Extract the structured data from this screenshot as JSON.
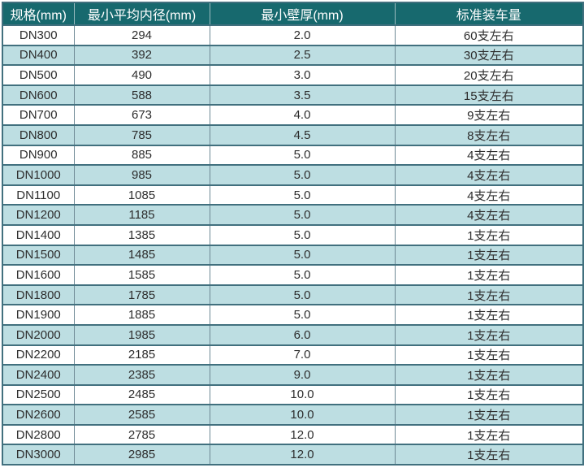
{
  "colors": {
    "header_bg": "#17696e",
    "header_text": "#ffffff",
    "row_bg": "#ffffff",
    "row_alt_bg": "#bddee2",
    "grid_horizontal": "#41707e",
    "grid_vertical": "#6d8894",
    "data_text": "#2d2d2d"
  },
  "table": {
    "columns": [
      {
        "label": "规格(mm)"
      },
      {
        "label": "最小平均内径(mm)"
      },
      {
        "label": "最小壁厚(mm)"
      },
      {
        "label": "标准装车量"
      }
    ],
    "rows": [
      {
        "spec": "DN300",
        "inner_diameter": "294",
        "wall_thickness": "2.0",
        "load_qty": "60支左右"
      },
      {
        "spec": "DN400",
        "inner_diameter": "392",
        "wall_thickness": "2.5",
        "load_qty": "30支左右"
      },
      {
        "spec": "DN500",
        "inner_diameter": "490",
        "wall_thickness": "3.0",
        "load_qty": "20支左右"
      },
      {
        "spec": "DN600",
        "inner_diameter": "588",
        "wall_thickness": "3.5",
        "load_qty": "15支左右"
      },
      {
        "spec": "DN700",
        "inner_diameter": "673",
        "wall_thickness": "4.0",
        "load_qty": "9支左右"
      },
      {
        "spec": "DN800",
        "inner_diameter": "785",
        "wall_thickness": "4.5",
        "load_qty": "8支左右"
      },
      {
        "spec": "DN900",
        "inner_diameter": "885",
        "wall_thickness": "5.0",
        "load_qty": "4支左右"
      },
      {
        "spec": "DN1000",
        "inner_diameter": "985",
        "wall_thickness": "5.0",
        "load_qty": "4支左右"
      },
      {
        "spec": "DN1100",
        "inner_diameter": "1085",
        "wall_thickness": "5.0",
        "load_qty": "4支左右"
      },
      {
        "spec": "DN1200",
        "inner_diameter": "1185",
        "wall_thickness": "5.0",
        "load_qty": "4支左右"
      },
      {
        "spec": "DN1400",
        "inner_diameter": "1385",
        "wall_thickness": "5.0",
        "load_qty": "1支左右"
      },
      {
        "spec": "DN1500",
        "inner_diameter": "1485",
        "wall_thickness": "5.0",
        "load_qty": "1支左右"
      },
      {
        "spec": "DN1600",
        "inner_diameter": "1585",
        "wall_thickness": "5.0",
        "load_qty": "1支左右"
      },
      {
        "spec": "DN1800",
        "inner_diameter": "1785",
        "wall_thickness": "5.0",
        "load_qty": "1支左右"
      },
      {
        "spec": "DN1900",
        "inner_diameter": "1885",
        "wall_thickness": "5.0",
        "load_qty": "1支左右"
      },
      {
        "spec": "DN2000",
        "inner_diameter": "1985",
        "wall_thickness": "6.0",
        "load_qty": "1支左右"
      },
      {
        "spec": "DN2200",
        "inner_diameter": "2185",
        "wall_thickness": "7.0",
        "load_qty": "1支左右"
      },
      {
        "spec": "DN2400",
        "inner_diameter": "2385",
        "wall_thickness": "9.0",
        "load_qty": "1支左右"
      },
      {
        "spec": "DN2500",
        "inner_diameter": "2485",
        "wall_thickness": "10.0",
        "load_qty": "1支左右"
      },
      {
        "spec": "DN2600",
        "inner_diameter": "2585",
        "wall_thickness": "10.0",
        "load_qty": "1支左右"
      },
      {
        "spec": "DN2800",
        "inner_diameter": "2785",
        "wall_thickness": "12.0",
        "load_qty": "1支左右"
      },
      {
        "spec": "DN3000",
        "inner_diameter": "2985",
        "wall_thickness": "12.0",
        "load_qty": "1支左右"
      }
    ]
  }
}
